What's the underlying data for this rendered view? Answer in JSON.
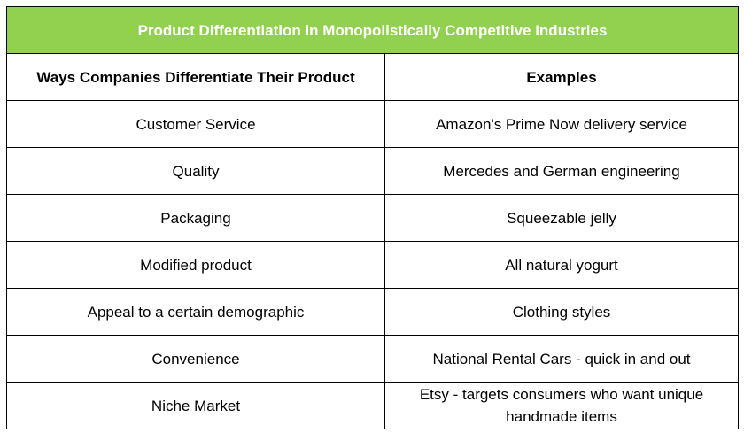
{
  "table": {
    "title": "Product Differentiation in Monopolistically Competitive Industries",
    "title_bg": "#92d050",
    "columns": [
      "Ways Companies Differentiate Their Product",
      "Examples"
    ],
    "rows": [
      [
        "Customer Service",
        "Amazon's Prime Now delivery service"
      ],
      [
        "Quality",
        "Mercedes and German engineering"
      ],
      [
        "Packaging",
        "Squeezable jelly"
      ],
      [
        "Modified product",
        "All natural yogurt"
      ],
      [
        "Appeal to a certain demographic",
        "Clothing styles"
      ],
      [
        "Convenience",
        "National Rental Cars - quick in and out"
      ],
      [
        "Niche Market",
        "Etsy - targets consumers who want unique handmade items"
      ]
    ]
  }
}
